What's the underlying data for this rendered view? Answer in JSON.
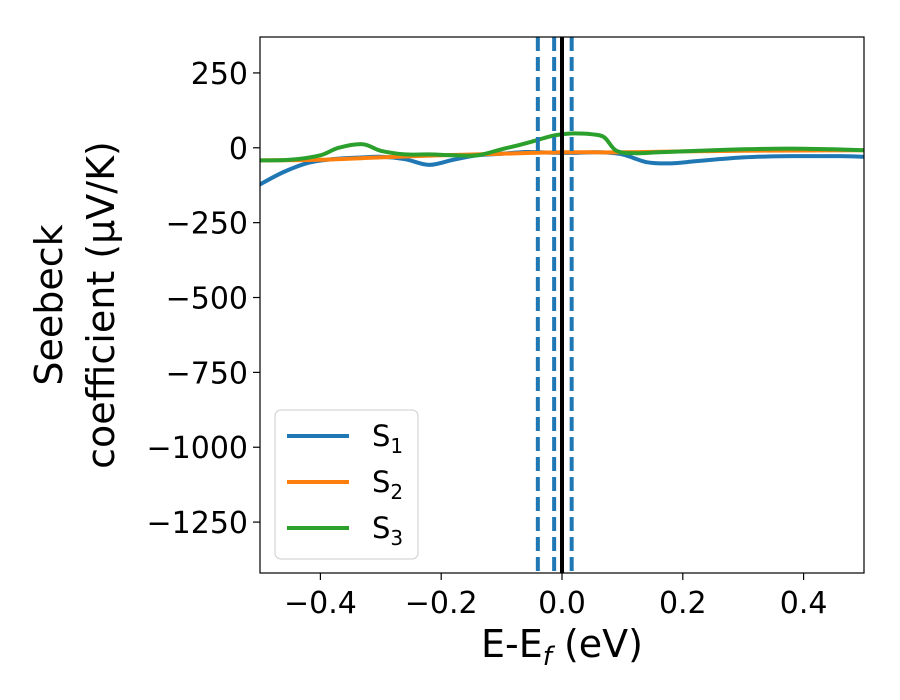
{
  "chart_data": {
    "type": "line",
    "title": "",
    "xlabel_main": "E-E",
    "xlabel_sub": "f",
    "xlabel_tail": " (eV)",
    "ylabel_line1": "Seebeck",
    "ylabel_line2": "coefficient  (μV/K)",
    "xlim": [
      -0.5,
      0.5
    ],
    "ylim": [
      -1420,
      370
    ],
    "xticks": [
      -0.4,
      -0.2,
      0.0,
      0.2,
      0.4
    ],
    "xtick_labels": [
      "−0.4",
      "−0.2",
      "0.0",
      "0.2",
      "0.4"
    ],
    "yticks": [
      250,
      0,
      -250,
      -500,
      -750,
      -1000,
      -1250
    ],
    "ytick_labels": [
      "250",
      "0",
      "−250",
      "−500",
      "−750",
      "−1000",
      "−1250"
    ],
    "grid": false,
    "legend_position": "lower-left",
    "series": [
      {
        "name_main": "S",
        "name_sub": "1",
        "color": "#1f77b4",
        "x": [
          -0.5,
          -0.46,
          -0.42,
          -0.38,
          -0.34,
          -0.3,
          -0.26,
          -0.22,
          -0.18,
          -0.14,
          -0.1,
          -0.06,
          -0.02,
          0.0,
          0.02,
          0.06,
          0.1,
          0.14,
          0.18,
          0.22,
          0.26,
          0.3,
          0.34,
          0.38,
          0.42,
          0.46,
          0.5
        ],
        "y": [
          -122,
          -80,
          -50,
          -38,
          -33,
          -30,
          -38,
          -57,
          -40,
          -25,
          -20,
          -14,
          -16,
          -17,
          -17,
          -15,
          -22,
          -48,
          -52,
          -45,
          -38,
          -32,
          -29,
          -28,
          -28,
          -28,
          -30
        ]
      },
      {
        "name_main": "S",
        "name_sub": "2",
        "color": "#ff7f0e",
        "x": [
          -0.5,
          -0.4,
          -0.3,
          -0.2,
          -0.1,
          -0.05,
          0.0,
          0.05,
          0.1,
          0.2,
          0.3,
          0.4,
          0.5
        ],
        "y": [
          -42,
          -40,
          -32,
          -25,
          -20,
          -17,
          -15,
          -15,
          -15,
          -12,
          -10,
          -9,
          -8
        ]
      },
      {
        "name_main": "S",
        "name_sub": "3",
        "color": "#2ca02c",
        "x": [
          -0.5,
          -0.45,
          -0.4,
          -0.37,
          -0.33,
          -0.3,
          -0.26,
          -0.22,
          -0.18,
          -0.14,
          -0.1,
          -0.06,
          -0.02,
          0.0,
          0.02,
          0.05,
          0.07,
          0.09,
          0.12,
          0.16,
          0.2,
          0.25,
          0.3,
          0.35,
          0.4,
          0.45,
          0.5
        ],
        "y": [
          -42,
          -40,
          -25,
          0,
          12,
          -10,
          -22,
          -22,
          -25,
          -25,
          -5,
          15,
          38,
          45,
          48,
          45,
          35,
          -10,
          -18,
          -15,
          -12,
          -8,
          -5,
          -3,
          -3,
          -5,
          -8
        ]
      }
    ],
    "vlines": [
      {
        "x": 0.0,
        "color": "#000000",
        "style": "solid"
      },
      {
        "x": -0.04,
        "color": "#1f77b4",
        "style": "dashed"
      },
      {
        "x": -0.013,
        "color": "#1f77b4",
        "style": "dashed"
      },
      {
        "x": 0.016,
        "color": "#1f77b4",
        "style": "dashed"
      }
    ]
  }
}
